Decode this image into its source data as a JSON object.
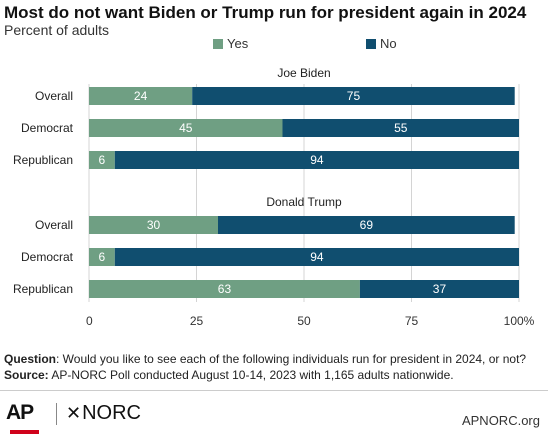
{
  "chart_data": {
    "type": "bar",
    "orientation": "horizontal",
    "stacked": true,
    "title": "Most do not want Biden or Trump run for president again in 2024",
    "subtitle": "Percent of adults",
    "legend": {
      "position": "top",
      "entries": [
        {
          "name": "Yes",
          "color": "#6f9f83"
        },
        {
          "name": "No",
          "color": "#104e6f"
        }
      ]
    },
    "xlim": [
      0,
      100
    ],
    "xticks": [
      "0",
      "25",
      "50",
      "75",
      "100%"
    ],
    "groups": [
      {
        "label": "Joe Biden",
        "rows": [
          {
            "category": "Overall",
            "yes": 24,
            "no": 75
          },
          {
            "category": "Democrat",
            "yes": 45,
            "no": 55
          },
          {
            "category": "Republican",
            "yes": 6,
            "no": 94
          }
        ]
      },
      {
        "label": "Donald Trump",
        "rows": [
          {
            "category": "Overall",
            "yes": 30,
            "no": 69
          },
          {
            "category": "Democrat",
            "yes": 6,
            "no": 94
          },
          {
            "category": "Republican",
            "yes": 63,
            "no": 37
          }
        ]
      }
    ],
    "grid": true
  },
  "footer": {
    "question_label": "Question",
    "question_text": ": Would you like to see each of the following individuals run for president in 2024, or not?",
    "source_label": "Source:",
    "source_text": " AP-NORC Poll conducted August 10-14, 2023 with 1,165 adults nationwide."
  },
  "branding": {
    "ap": "AP",
    "norc": "NORC",
    "site": "APNORC.org"
  },
  "colors": {
    "yes": "#6f9f83",
    "no": "#104e6f",
    "grid": "#d4d4d4",
    "bg": "#ffffff"
  }
}
